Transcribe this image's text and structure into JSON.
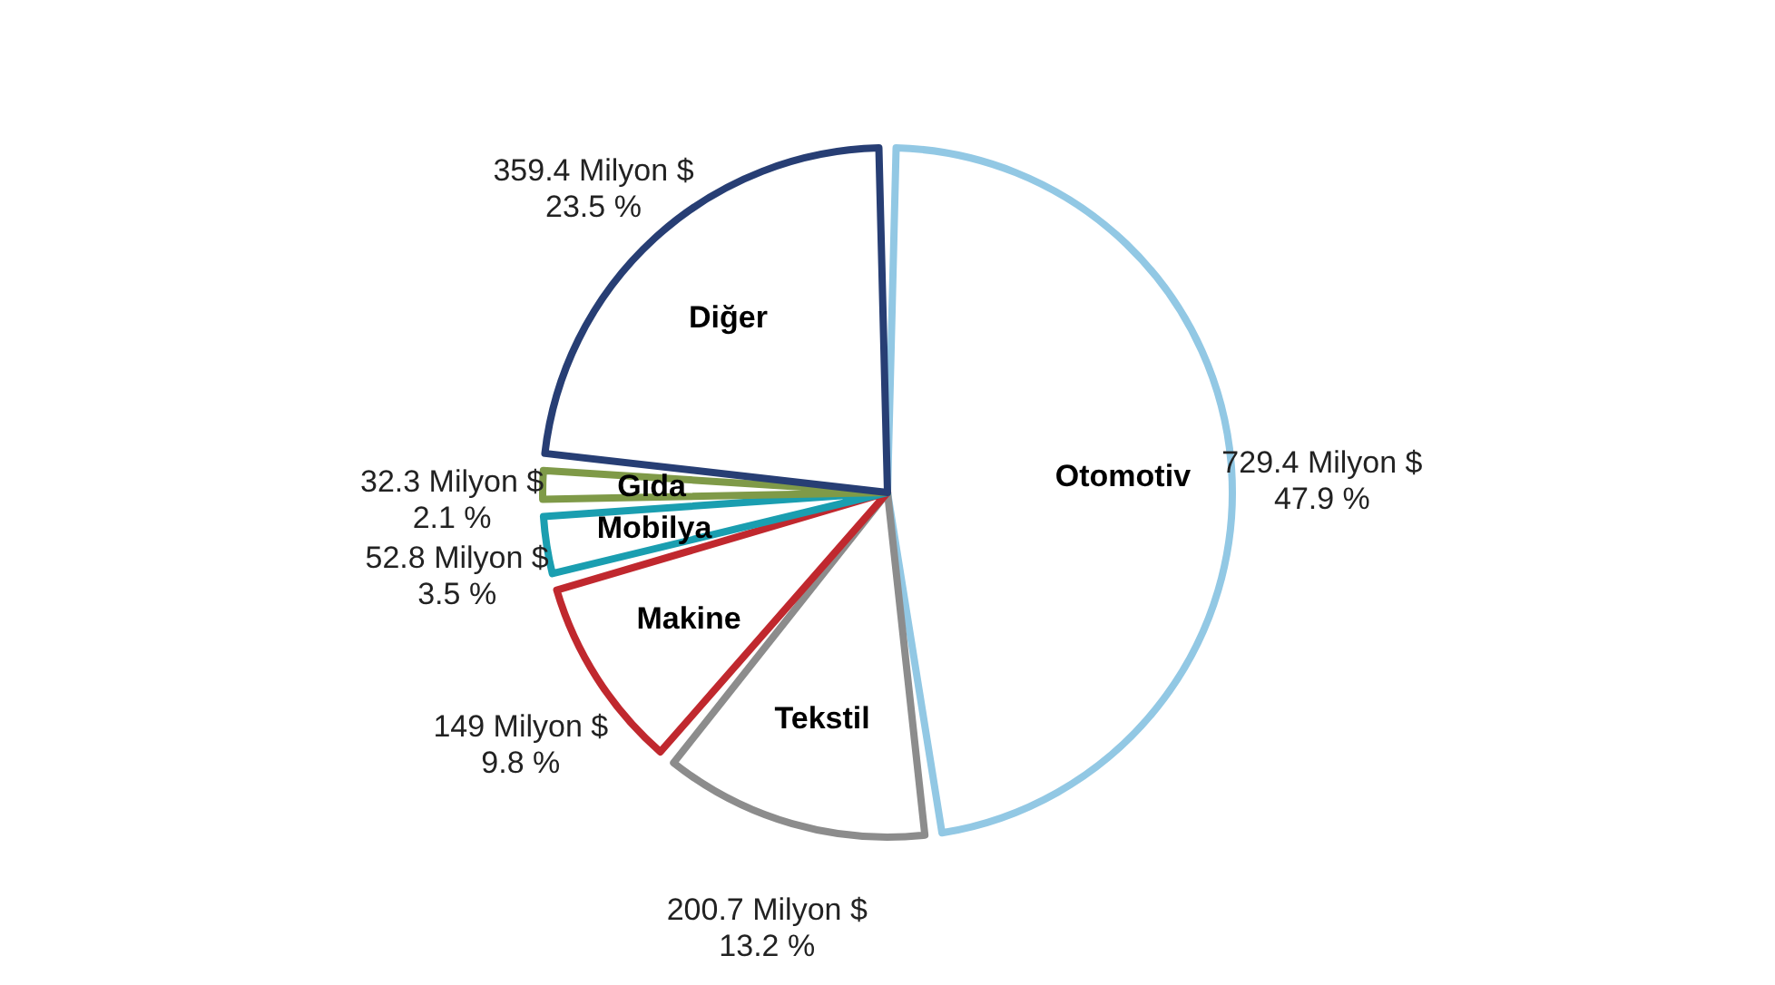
{
  "chart_data": {
    "type": "pie",
    "categories": [
      "Otomotiv",
      "Tekstil",
      "Makine",
      "Mobilya",
      "Gıda",
      "Diğer"
    ],
    "values": [
      729.4,
      200.7,
      149,
      52.8,
      32.3,
      359.4
    ],
    "colors": [
      "#92c8e4",
      "#8c8c8c",
      "#c0282e",
      "#1a9eb0",
      "#7f9a48",
      "#273e74"
    ],
    "value_labels": [
      "729.4 Milyon $\n47.9 %",
      "200.7 Milyon $\n13.2 %",
      "149 Milyon $\n9.8 %",
      "52.8 Milyon $\n3.5 %",
      "32.3 Milyon $\n2.1 %",
      "359.4 Milyon $\n23.5 %"
    ],
    "legend": false
  }
}
